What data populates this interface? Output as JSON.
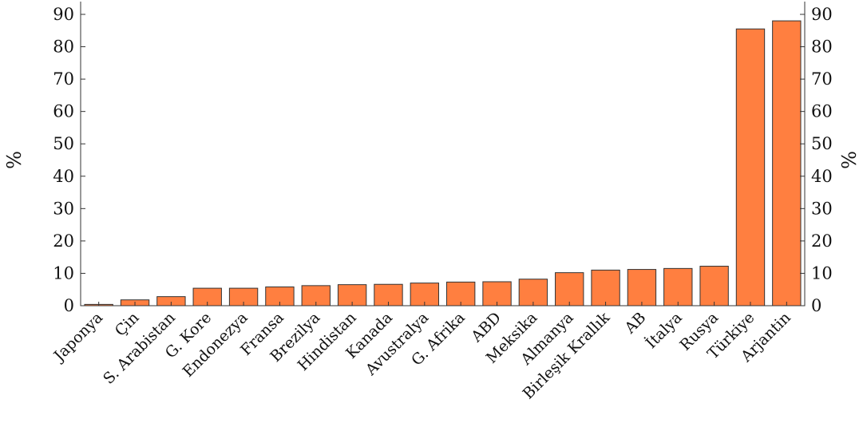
{
  "chart_data": {
    "type": "bar",
    "categories": [
      "Japonya",
      "Çin",
      "S. Arabistan",
      "G. Kore",
      "Endonezya",
      "Fransa",
      "Brezilya",
      "Hindistan",
      "Kanada",
      "Avustralya",
      "G. Afrika",
      "ABD",
      "Meksika",
      "Almanya",
      "Birleşik Krallık",
      "AB",
      "İtalya",
      "Rusya",
      "Türkiye",
      "Arjantin"
    ],
    "values": [
      0.4,
      1.8,
      2.8,
      5.4,
      5.4,
      5.8,
      6.2,
      6.5,
      6.6,
      7.0,
      7.3,
      7.4,
      8.2,
      10.2,
      11.0,
      11.2,
      11.5,
      12.2,
      85.5,
      88.0
    ],
    "ylabel": "%",
    "ylabel_right": "%",
    "ylim": [
      0,
      90
    ],
    "yticks": [
      0,
      10,
      20,
      30,
      40,
      50,
      60,
      70,
      80,
      90
    ],
    "bar_color": "#ff7f40",
    "grid": false,
    "legend": "none"
  }
}
